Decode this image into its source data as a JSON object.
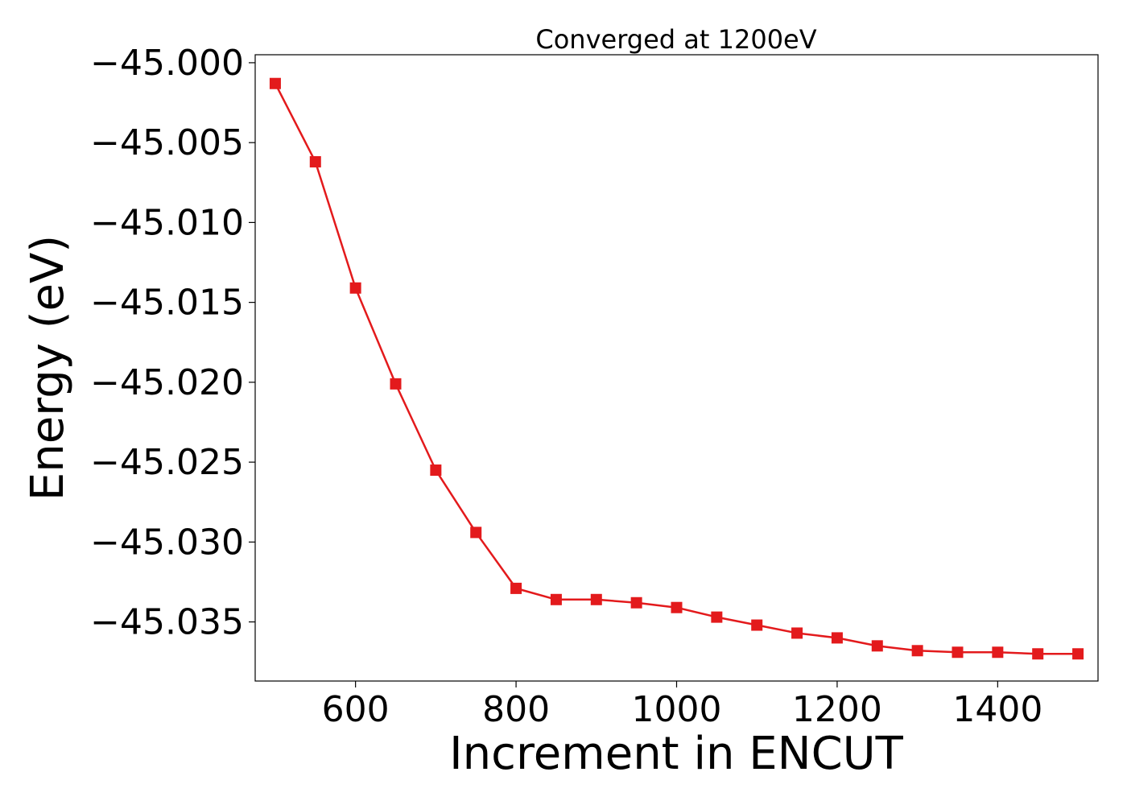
{
  "chart_data": {
    "type": "line",
    "title": "Converged at 1200eV",
    "xlabel": "Increment in ENCUT",
    "ylabel": "Energy (eV)",
    "xlim": [
      475,
      1525
    ],
    "ylim": [
      -45.0387,
      -44.9995
    ],
    "xticks": [
      600,
      800,
      1000,
      1200,
      1400
    ],
    "xtick_labels": [
      "600",
      "800",
      "1000",
      "1200",
      "1400"
    ],
    "yticks": [
      -45.0,
      -45.005,
      -45.01,
      -45.015,
      -45.02,
      -45.025,
      -45.03,
      -45.035
    ],
    "ytick_labels": [
      "−45.000",
      "−45.005",
      "−45.010",
      "−45.015",
      "−45.020",
      "−45.025",
      "−45.030",
      "−45.035"
    ],
    "grid": false,
    "series": [
      {
        "color": "#e31a1c",
        "marker": "square",
        "x": [
          500,
          550,
          600,
          650,
          700,
          750,
          800,
          850,
          900,
          950,
          1000,
          1050,
          1100,
          1150,
          1200,
          1250,
          1300,
          1350,
          1400,
          1450,
          1500
        ],
        "y": [
          -45.0013,
          -45.0062,
          -45.0141,
          -45.0201,
          -45.0255,
          -45.0294,
          -45.0329,
          -45.0336,
          -45.0336,
          -45.0338,
          -45.0341,
          -45.0347,
          -45.0352,
          -45.0357,
          -45.036,
          -45.0365,
          -45.0368,
          -45.0369,
          -45.0369,
          -45.037,
          -45.037
        ]
      }
    ]
  }
}
